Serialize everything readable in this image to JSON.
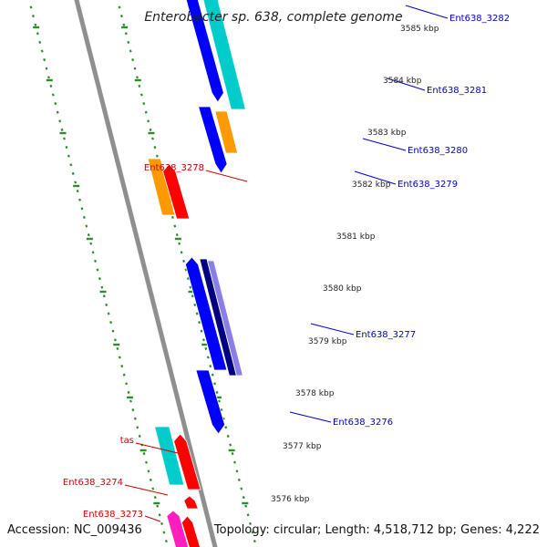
{
  "title": "Enterobacter sp. 638, complete genome",
  "accession": "Accession: NC_009436",
  "topology": "Topology: circular; Length: 4,518,712 bp; Genes: 4,222",
  "colors": {
    "backbone": "#8f8f8f",
    "tick": "#2e8b2e",
    "red": "#ff0000",
    "orange": "#ff9900",
    "cyan": "#00cccc",
    "blue": "#0000ff",
    "navy": "#000080",
    "purple": "#8a7fe8",
    "magenta": "#ff1fbf",
    "label_red": "#cc0000",
    "label_blue": "#0000cc",
    "scale_text": "#222222"
  },
  "scale_labels": [
    "3585 kbp",
    "3584 kbp",
    "3583 kbp",
    "3582 kbp",
    "3581 kbp",
    "3580 kbp",
    "3579 kbp",
    "3578 kbp",
    "3577 kbp",
    "3576 kbp"
  ],
  "gene_labels": {
    "right": [
      "Ent638_3282",
      "Ent638_3281",
      "Ent638_3280",
      "Ent638_3279",
      "Ent638_3277",
      "Ent638_3276"
    ],
    "left": [
      "Ent638_3278",
      "tas",
      "Ent638_3274",
      "Ent638_3273"
    ]
  }
}
